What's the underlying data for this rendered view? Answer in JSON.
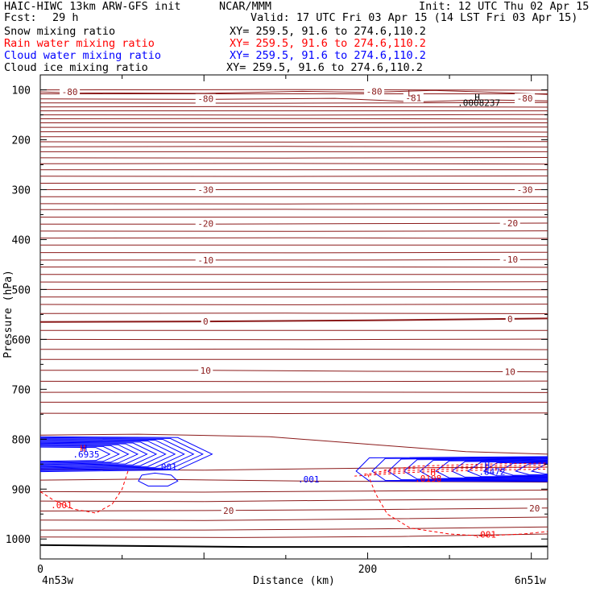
{
  "header": {
    "title": "HAIC-HIWC 13km ARW-GFS init",
    "org": "NCAR/MMM",
    "init": "Init: 12 UTC Thu 02 Apr 15",
    "fcst_label": "Fcst:",
    "fcst_value": "29 h",
    "valid": "Valid: 17 UTC Fri 03 Apr 15 (14 LST Fri 03 Apr 15)",
    "fields": [
      {
        "label": "Snow mixing ratio",
        "xy": "XY= 259.5, 91.6 to 274.6,110.2",
        "color": "#000000"
      },
      {
        "label": "Rain water mixing ratio",
        "xy": "XY= 259.5, 91.6 to 274.6,110.2",
        "color": "#ff0000"
      },
      {
        "label": "Cloud water mixing ratio",
        "xy": "XY= 259.5, 91.6 to 274.6,110.2",
        "color": "#0000ff"
      },
      {
        "label": "Cloud ice mixing ratio",
        "xy": "XY= 259.5, 91.6 to 274.6,110.2",
        "color": "#000000"
      }
    ]
  },
  "chart_data": {
    "type": "line",
    "title": "HAIC-HIWC 13km ARW-GFS init",
    "xlabel": "Distance (km)",
    "ylabel": "Pressure (hPa)",
    "xlim": [
      0,
      310
    ],
    "ylim": [
      1040,
      70
    ],
    "x_ticks": [
      0,
      200
    ],
    "y_ticks": [
      100,
      200,
      300,
      400,
      500,
      600,
      700,
      800,
      900,
      1000
    ],
    "x_end_labels": {
      "left": "4n53w",
      "right": "6n51w"
    },
    "colors": {
      "temperature": "#8b1a1a",
      "cloud_water": "#0000ff",
      "rain_water": "#ff0000",
      "ground": "#000000"
    },
    "temperature_contours": [
      {
        "label": "-80",
        "points": [
          [
            0,
            104
          ],
          [
            20,
            106
          ],
          [
            100,
            107
          ],
          [
            160,
            103
          ],
          [
            200,
            105
          ],
          [
            240,
            101
          ],
          [
            270,
            104
          ],
          [
            310,
            109
          ]
        ]
      },
      {
        "label": "-80",
        "points": [
          [
            0,
            118
          ],
          [
            100,
            119
          ],
          [
            180,
            117
          ],
          [
            230,
            124
          ],
          [
            270,
            120
          ],
          [
            310,
            122
          ]
        ]
      },
      {
        "label": "-30",
        "points": [
          [
            0,
            300
          ],
          [
            100,
            300
          ],
          [
            200,
            300
          ],
          [
            310,
            300
          ]
        ]
      },
      {
        "label": "-20",
        "points": [
          [
            0,
            369
          ],
          [
            100,
            369
          ],
          [
            200,
            368
          ],
          [
            310,
            367
          ]
        ]
      },
      {
        "label": "-10",
        "points": [
          [
            0,
            441
          ],
          [
            100,
            441
          ],
          [
            200,
            441
          ],
          [
            310,
            440
          ]
        ]
      },
      {
        "label": "0",
        "points": [
          [
            0,
            565
          ],
          [
            100,
            564
          ],
          [
            200,
            562
          ],
          [
            310,
            558
          ]
        ]
      },
      {
        "label": "10",
        "points": [
          [
            0,
            662
          ],
          [
            100,
            662
          ],
          [
            200,
            664
          ],
          [
            310,
            665
          ]
        ]
      },
      {
        "label": "20",
        "points": [
          [
            0,
            944
          ],
          [
            100,
            943
          ],
          [
            200,
            941
          ],
          [
            310,
            938
          ]
        ]
      }
    ],
    "temperature_labels": [
      {
        "text": "-80",
        "x": 18,
        "p": 104
      },
      {
        "text": "-80",
        "x": 101,
        "p": 118
      },
      {
        "text": "-80",
        "x": 204,
        "p": 103
      },
      {
        "text": "-81",
        "x": 228,
        "p": 116
      },
      {
        "text": "-80",
        "x": 296,
        "p": 117
      },
      {
        "text": "-30",
        "x": 101,
        "p": 300
      },
      {
        "text": "-30",
        "x": 296,
        "p": 300
      },
      {
        "text": "-20",
        "x": 101,
        "p": 368
      },
      {
        "text": "-20",
        "x": 287,
        "p": 367
      },
      {
        "text": "-10",
        "x": 101,
        "p": 441
      },
      {
        "text": "-10",
        "x": 287,
        "p": 440
      },
      {
        "text": "0",
        "x": 101,
        "p": 564
      },
      {
        "text": "0",
        "x": 287,
        "p": 559
      },
      {
        "text": "10",
        "x": 101,
        "p": 662
      },
      {
        "text": "10",
        "x": 287,
        "p": 665
      },
      {
        "text": "20",
        "x": 115,
        "p": 943
      },
      {
        "text": "20",
        "x": 302,
        "p": 938
      }
    ],
    "extrema": [
      {
        "text": "L",
        "x": 226,
        "p": 106,
        "color": "#8b1a1a"
      },
      {
        "text": "H",
        "x": 267,
        "p": 114,
        "color": "#000000"
      },
      {
        "text": ".0008237",
        "x": 268,
        "p": 126,
        "color": "#000000"
      },
      {
        "text": "H",
        "x": 26,
        "p": 818,
        "color": "#ff0000"
      },
      {
        "text": "H",
        "x": 27,
        "p": 818,
        "color": "#0000ff"
      },
      {
        "text": ".6935",
        "x": 28,
        "p": 830,
        "color": "#0000ff"
      },
      {
        "text": "H",
        "x": 273,
        "p": 852,
        "color": "#0000ff"
      },
      {
        "text": ".8472",
        "x": 276,
        "p": 865,
        "color": "#0000ff"
      },
      {
        "text": "H",
        "x": 240,
        "p": 866,
        "color": "#ff0000"
      },
      {
        "text": ".0198",
        "x": 237,
        "p": 879,
        "color": "#ff0000"
      }
    ],
    "contour_value_labels": [
      {
        "text": ".001",
        "x": 77,
        "p": 855,
        "color": "#0000ff"
      },
      {
        "text": ".001",
        "x": 164,
        "p": 880,
        "color": "#0000ff"
      },
      {
        "text": ".001",
        "x": 13,
        "p": 932,
        "color": "#ff0000"
      },
      {
        "text": ".001",
        "x": 272,
        "p": 991,
        "color": "#ff0000"
      }
    ],
    "cloud_water_mixing_ratio": [
      {
        "region": "left",
        "x_range": [
          0,
          105
        ],
        "p_range": [
          795,
          865
        ],
        "max": 0.6935
      },
      {
        "region": "right",
        "x_range": [
          180,
          310
        ],
        "p_range": [
          835,
          885
        ],
        "max": 0.8472
      }
    ],
    "rain_water_mixing_ratio": [
      {
        "region": "left",
        "x_range": [
          0,
          55
        ],
        "p_range": [
          820,
          950
        ],
        "max": 0.0198
      },
      {
        "region": "right",
        "x_range": [
          195,
          310
        ],
        "p_range": [
          850,
          1000
        ],
        "max": 0.0198
      }
    ],
    "cloud_ice_max": 0.0008237
  }
}
